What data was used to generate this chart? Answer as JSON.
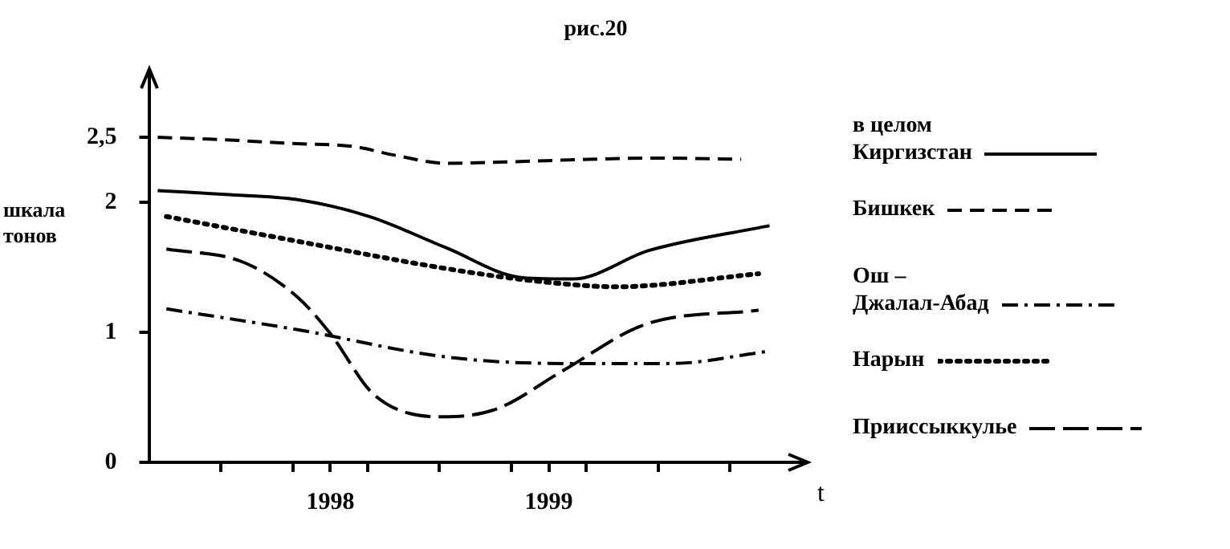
{
  "chart_data": {
    "type": "line",
    "title": "рис.20",
    "xlabel": "t",
    "ylabel": "шкала\nтонов",
    "xlim": [
      1997.17,
      2000.17
    ],
    "ylim": [
      0,
      3
    ],
    "xticks": [
      {
        "value": 1997.5,
        "label": null
      },
      {
        "value": 1997.83,
        "label": null
      },
      1998,
      {
        "value": 1998.17,
        "label": null
      },
      {
        "value": 1998.5,
        "label": null
      },
      {
        "value": 1998.83,
        "label": null
      },
      1999,
      {
        "value": 1999.17,
        "label": null
      },
      {
        "value": 1999.5,
        "label": null
      },
      {
        "value": 1999.83,
        "label": null
      }
    ],
    "yticks": [
      0,
      1,
      2,
      {
        "value": 2.5,
        "label": "2,5"
      }
    ],
    "grid": false,
    "legend": "right",
    "marker": "none",
    "series": [
      {
        "name": "в целом\nКиргизстан",
        "color": "#000000",
        "line_style": "solid",
        "x": [
          1997.21,
          1997.52,
          1997.85,
          1998.18,
          1998.53,
          1998.88,
          1999.11,
          1999.46,
          2000.01
        ],
        "values": [
          2.09,
          2.06,
          2.02,
          1.89,
          1.65,
          1.42,
          1.41,
          1.63,
          1.82
        ]
      },
      {
        "name": "Бишкек",
        "color": "#000000",
        "line_style": "dashed",
        "x": [
          1997.21,
          1997.52,
          1997.85,
          1998.1,
          1998.3,
          1998.53,
          1998.8,
          1999.18,
          1999.51,
          1999.88
        ],
        "values": [
          2.5,
          2.48,
          2.45,
          2.43,
          2.36,
          2.3,
          2.31,
          2.33,
          2.34,
          2.33
        ]
      },
      {
        "name": "Ош –\nДжалал-Абад",
        "color": "#000000",
        "line_style": "dashed",
        "x": [
          1997.25,
          1997.85,
          1998.53,
          1999.06,
          1999.56,
          1999.99
        ],
        "values": [
          1.18,
          1.02,
          0.81,
          0.76,
          0.76,
          0.85
        ]
      },
      {
        "name": "Нарын",
        "color": "#000000",
        "line_style": "dotted",
        "x": [
          1997.25,
          1997.85,
          1998.53,
          1998.91,
          1999.31,
          1999.96
        ],
        "values": [
          1.89,
          1.7,
          1.49,
          1.4,
          1.35,
          1.45
        ]
      },
      {
        "name": "Прииссыккулье",
        "color": "#000000",
        "line_style": "dashed",
        "x": [
          1997.25,
          1997.6,
          1997.85,
          1998,
          1998.2,
          1998.51,
          1998.76,
          1999.06,
          1999.44,
          1999.96
        ],
        "values": [
          1.64,
          1.54,
          1.27,
          0.99,
          0.52,
          0.35,
          0.41,
          0.7,
          1.06,
          1.17
        ]
      }
    ]
  }
}
